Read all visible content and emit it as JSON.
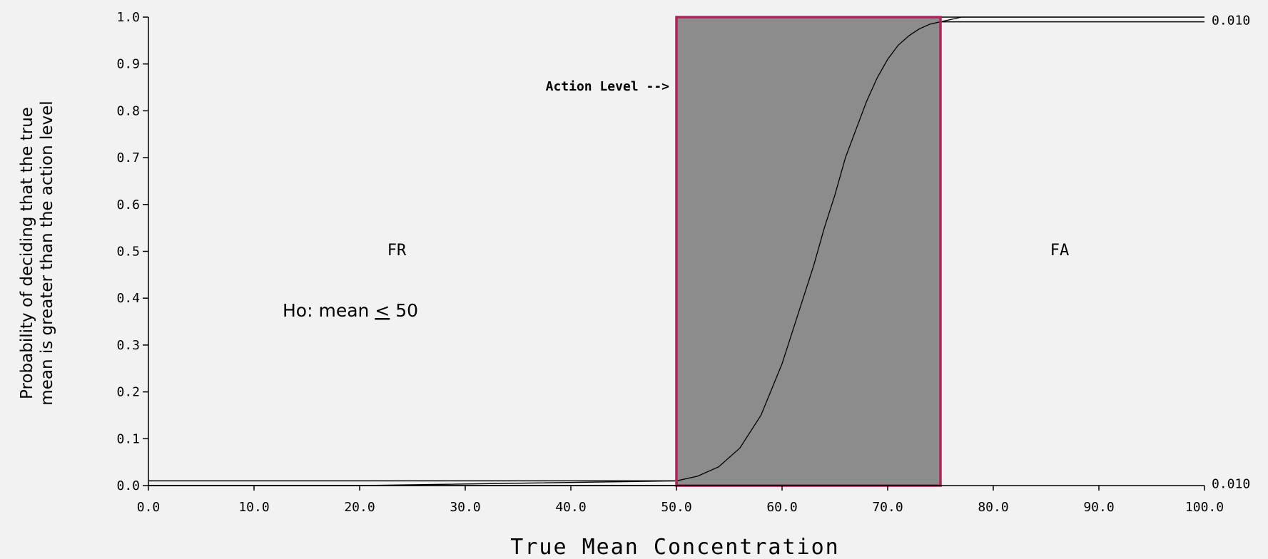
{
  "chart_data": {
    "type": "line",
    "title": "",
    "xlabel": "True Mean Concentration",
    "ylabel_lines": [
      "Probability of deciding that the true",
      "mean is greater than the action level"
    ],
    "xlim": [
      0,
      100
    ],
    "ylim": [
      0,
      1
    ],
    "x_ticks": [
      0,
      10,
      20,
      30,
      40,
      50,
      60,
      70,
      80,
      90,
      100
    ],
    "x_tick_labels": [
      "0.0",
      "10.0",
      "20.0",
      "30.0",
      "40.0",
      "50.0",
      "60.0",
      "70.0",
      "80.0",
      "90.0",
      "100.0"
    ],
    "y_ticks": [
      0,
      0.1,
      0.2,
      0.3,
      0.4,
      0.5,
      0.6,
      0.7,
      0.8,
      0.9,
      1.0
    ],
    "y_tick_labels": [
      "0.0",
      "0.1",
      "0.2",
      "0.3",
      "0.4",
      "0.5",
      "0.6",
      "0.7",
      "0.8",
      "0.9",
      "1.0"
    ],
    "grid": false,
    "gray_region": {
      "x_from": 50,
      "x_to": 75,
      "fill": "#8c8c8c",
      "border": "#b0245c"
    },
    "curve": {
      "x": [
        0,
        20,
        50,
        52,
        54,
        56,
        58,
        60,
        61,
        62,
        63,
        64,
        65,
        66,
        67,
        68,
        69,
        70,
        71,
        72,
        73,
        74,
        75,
        77,
        100
      ],
      "y": [
        0.0,
        0.0,
        0.01,
        0.02,
        0.04,
        0.08,
        0.15,
        0.26,
        0.33,
        0.4,
        0.47,
        0.55,
        0.62,
        0.7,
        0.76,
        0.82,
        0.87,
        0.91,
        0.94,
        0.96,
        0.975,
        0.985,
        0.99,
        1.0,
        1.0
      ]
    },
    "tolerance_bands": [
      {
        "label": "0.010",
        "x_from": 0,
        "x_to": 50,
        "y_base": 0.0,
        "y_offset": 0.01
      },
      {
        "label": "0.010",
        "x_from": 75,
        "x_to": 100,
        "y_base": 1.0,
        "y_offset": -0.01
      }
    ],
    "annotations": {
      "action_level": "Action Level -->",
      "fr": "FR",
      "fa": "FA",
      "ho_prefix": "Ho: mean ",
      "ho_symbol": "<",
      "ho_value": " 50"
    },
    "colors": {
      "background": "#f2f2f2",
      "axis": "#000000",
      "curve": "#000000"
    }
  }
}
